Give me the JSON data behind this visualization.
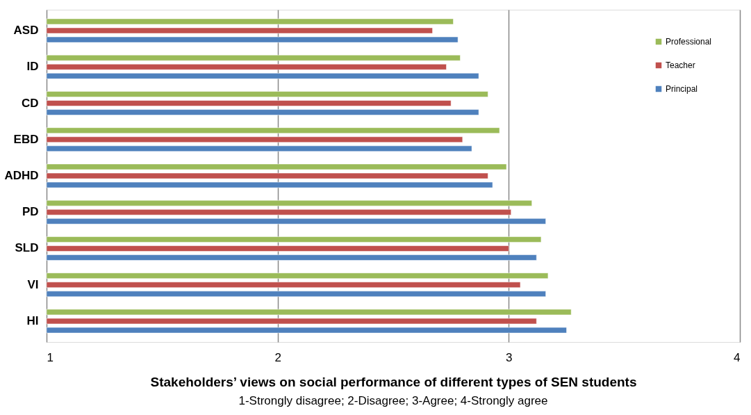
{
  "chart_data": {
    "type": "bar",
    "orientation": "horizontal",
    "xlabel": "Stakeholders’ views on social performance of different types of SEN students",
    "annotations": [
      "1-Strongly disagree; 2-Disagree; 3-Agree; 4-Strongly agree"
    ],
    "categories": [
      "ASD",
      "ID",
      "CD",
      "EBD",
      "ADHD",
      "PD",
      "SLD",
      "VI",
      "HI"
    ],
    "series": [
      {
        "name": "Professional",
        "color": "#9bbb59",
        "values": [
          2.76,
          2.79,
          2.91,
          2.96,
          2.99,
          3.1,
          3.14,
          3.17,
          3.27
        ]
      },
      {
        "name": "Teacher",
        "color": "#c0504d",
        "values": [
          2.67,
          2.73,
          2.75,
          2.8,
          2.91,
          3.01,
          3.0,
          3.05,
          3.12
        ]
      },
      {
        "name": "Principal",
        "color": "#4f81bd",
        "values": [
          2.78,
          2.87,
          2.87,
          2.84,
          2.93,
          3.16,
          3.12,
          3.16,
          3.25
        ]
      }
    ],
    "xlim": [
      1,
      4
    ],
    "xticks": [
      1,
      2,
      3,
      4
    ],
    "grid": "x",
    "legend": "top right"
  }
}
